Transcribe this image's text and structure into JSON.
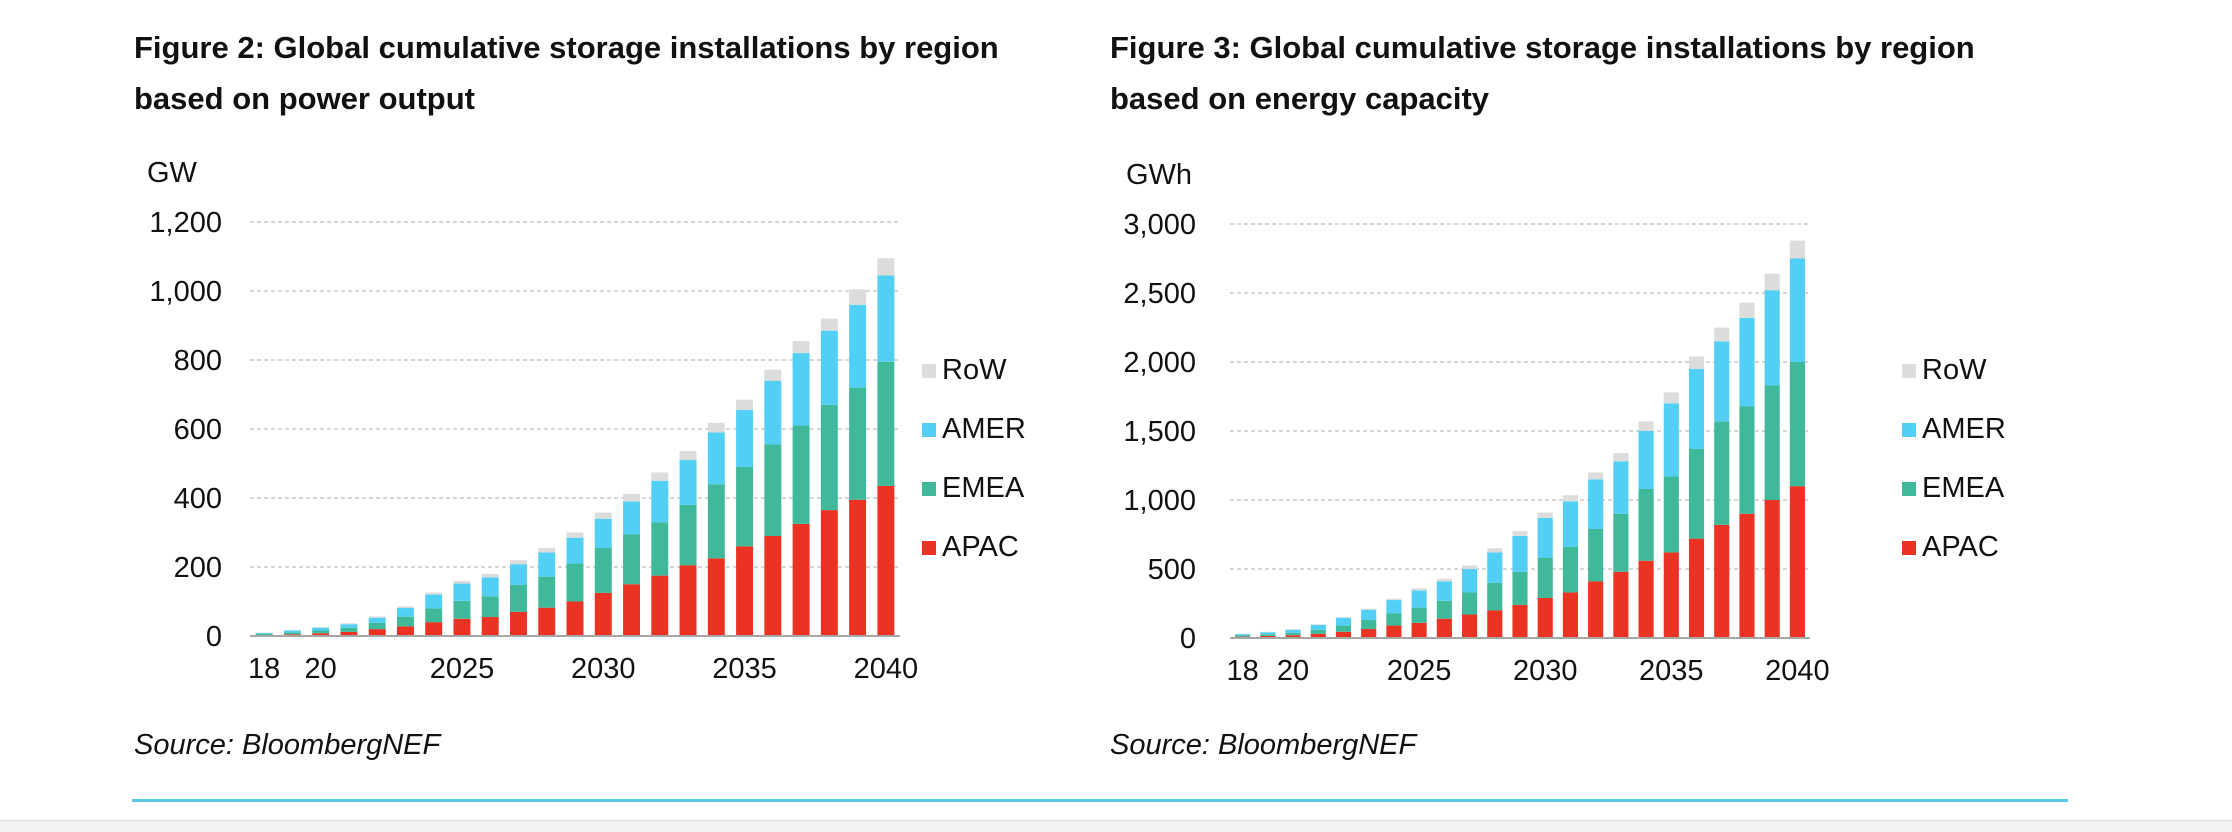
{
  "colors": {
    "RoW": "#dcdcdc",
    "AMER": "#51cff5",
    "EMEA": "#3fb99a",
    "APAC": "#ea3323",
    "grid": "#c8c8c8",
    "rule": "#5cc6e8"
  },
  "figures": [
    {
      "title_line1": "Figure 2: Global cumulative storage installations by region",
      "title_line2": "based on power output",
      "source": "Source: BloombergNEF"
    },
    {
      "title_line1": "Figure 3: Global cumulative storage installations by region",
      "title_line2": "based on energy capacity",
      "source": "Source: BloombergNEF"
    }
  ],
  "chart_data": [
    {
      "type": "bar",
      "stacked": true,
      "unit": "GW",
      "categories": [
        "2018",
        "2019",
        "2020",
        "2021",
        "2022",
        "2023",
        "2024",
        "2025",
        "2026",
        "2027",
        "2028",
        "2029",
        "2030",
        "2031",
        "2032",
        "2033",
        "2034",
        "2035",
        "2036",
        "2037",
        "2038",
        "2039",
        "2040"
      ],
      "x_tick_labels": [
        "18",
        "20",
        "2025",
        "2030",
        "2035",
        "2040"
      ],
      "x_tick_positions": [
        "2018",
        "2020",
        "2025",
        "2030",
        "2035",
        "2040"
      ],
      "ylim": [
        0,
        1200
      ],
      "yticks": [
        0,
        200,
        400,
        600,
        800,
        1000,
        1200
      ],
      "ytick_labels": [
        "0",
        "200",
        "400",
        "600",
        "800",
        "1,000",
        "1,200"
      ],
      "grid": true,
      "legend_position": "right",
      "legend": [
        "RoW",
        "AMER",
        "EMEA",
        "APAC"
      ],
      "series": [
        {
          "name": "APAC",
          "values": [
            3,
            5,
            8,
            12,
            20,
            28,
            40,
            50,
            55,
            70,
            82,
            100,
            125,
            150,
            175,
            205,
            225,
            260,
            290,
            325,
            365,
            395,
            435
          ]
        },
        {
          "name": "EMEA",
          "values": [
            3,
            5,
            8,
            12,
            18,
            28,
            40,
            52,
            60,
            78,
            90,
            110,
            130,
            145,
            155,
            175,
            215,
            230,
            265,
            285,
            305,
            325,
            360
          ]
        },
        {
          "name": "AMER",
          "values": [
            3,
            6,
            8,
            10,
            15,
            25,
            40,
            50,
            55,
            60,
            70,
            75,
            85,
            95,
            120,
            130,
            150,
            165,
            185,
            210,
            215,
            240,
            250
          ]
        },
        {
          "name": "RoW",
          "values": [
            1,
            1,
            2,
            3,
            4,
            5,
            6,
            8,
            10,
            12,
            13,
            15,
            18,
            22,
            24,
            26,
            28,
            30,
            32,
            35,
            35,
            45,
            50
          ]
        }
      ]
    },
    {
      "type": "bar",
      "stacked": true,
      "unit": "GWh",
      "categories": [
        "2018",
        "2019",
        "2020",
        "2021",
        "2022",
        "2023",
        "2024",
        "2025",
        "2026",
        "2027",
        "2028",
        "2029",
        "2030",
        "2031",
        "2032",
        "2033",
        "2034",
        "2035",
        "2036",
        "2037",
        "2038",
        "2039",
        "2040"
      ],
      "x_tick_labels": [
        "18",
        "20",
        "2025",
        "2030",
        "2035",
        "2040"
      ],
      "x_tick_positions": [
        "2018",
        "2020",
        "2025",
        "2030",
        "2035",
        "2040"
      ],
      "ylim": [
        0,
        3000
      ],
      "yticks": [
        0,
        500,
        1000,
        1500,
        2000,
        2500,
        3000
      ],
      "ytick_labels": [
        "0",
        "500",
        "1,000",
        "1,500",
        "2,000",
        "2,500",
        "3,000"
      ],
      "grid": true,
      "legend_position": "right",
      "legend": [
        "RoW",
        "AMER",
        "EMEA",
        "APAC"
      ],
      "series": [
        {
          "name": "APAC",
          "values": [
            10,
            15,
            20,
            30,
            45,
            65,
            90,
            110,
            140,
            170,
            200,
            240,
            290,
            330,
            410,
            480,
            560,
            620,
            720,
            820,
            900,
            1000,
            1100
          ]
        },
        {
          "name": "EMEA",
          "values": [
            8,
            12,
            18,
            30,
            45,
            65,
            90,
            110,
            130,
            160,
            200,
            240,
            290,
            330,
            380,
            420,
            520,
            550,
            650,
            750,
            780,
            830,
            900
          ]
        },
        {
          "name": "AMER",
          "values": [
            10,
            15,
            22,
            35,
            55,
            75,
            95,
            125,
            140,
            170,
            220,
            260,
            290,
            330,
            360,
            380,
            420,
            530,
            580,
            580,
            640,
            690,
            750
          ]
        },
        {
          "name": "RoW",
          "values": [
            2,
            3,
            4,
            5,
            6,
            8,
            10,
            15,
            20,
            25,
            30,
            35,
            40,
            45,
            50,
            60,
            70,
            80,
            90,
            100,
            110,
            120,
            130
          ]
        }
      ]
    }
  ]
}
